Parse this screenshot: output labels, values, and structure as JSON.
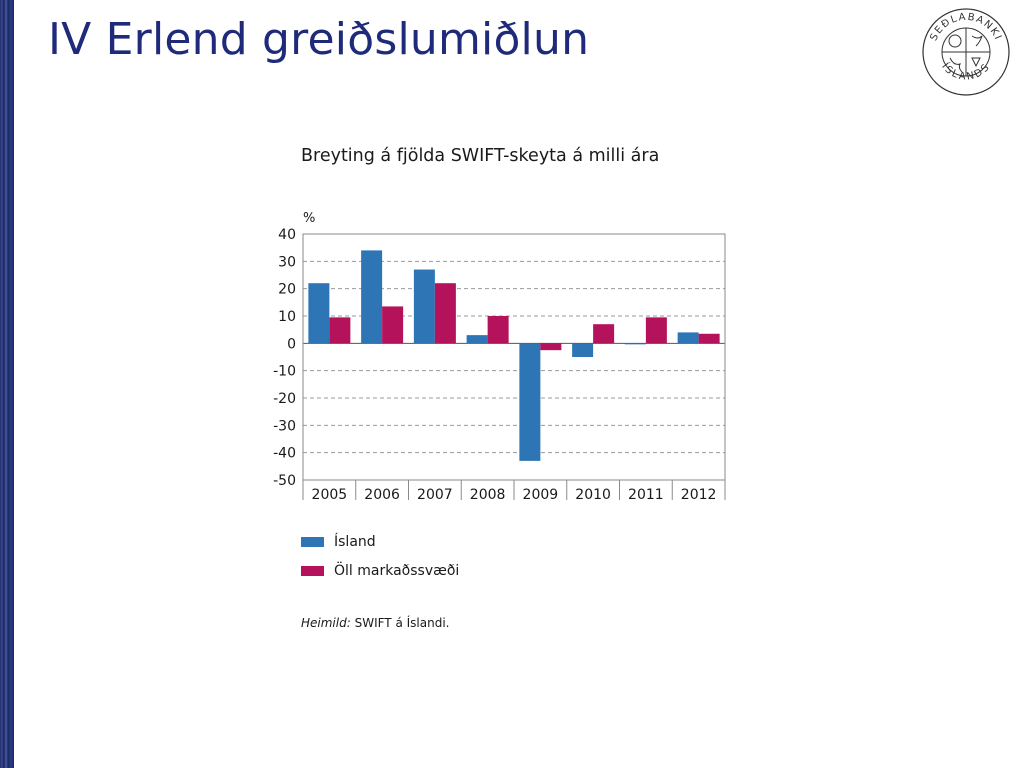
{
  "slide": {
    "title": "IV Erlend greiðslumiðlun",
    "accent_color": "#1f2b7a"
  },
  "logo": {
    "name": "sedlabanki-seal",
    "text_top": "SEÐLABANKI",
    "text_bottom": "ÍSLANDS"
  },
  "chart_data": {
    "type": "bar",
    "title": "Breyting á fjölda SWIFT-skeyta á milli ára",
    "ylabel": "%",
    "xlabel": "",
    "categories": [
      "2005",
      "2006",
      "2007",
      "2008",
      "2009",
      "2010",
      "2011",
      "2012"
    ],
    "series": [
      {
        "name": "Ísland",
        "color": "#2e75b6",
        "values": [
          22,
          34,
          27,
          3,
          -43,
          -5,
          0,
          4
        ]
      },
      {
        "name": "Öll markaðssvæði",
        "color": "#b5125c",
        "values": [
          9.5,
          13.5,
          22,
          10,
          -2.5,
          7,
          9.5,
          3.5
        ]
      }
    ],
    "ylim": [
      -50,
      40
    ],
    "yticks": [
      40,
      30,
      20,
      10,
      0,
      -10,
      -20,
      -30,
      -40,
      -50
    ],
    "grid": true,
    "legend_position": "bottom-left"
  },
  "source": {
    "label": "Heimild:",
    "text": "SWIFT á Íslandi."
  }
}
